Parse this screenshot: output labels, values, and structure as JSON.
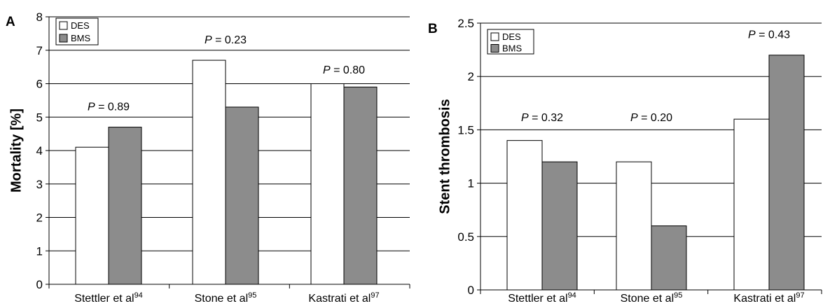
{
  "chart_data": [
    {
      "type": "bar",
      "panel_label": "A",
      "ylabel": "Mortality [%]",
      "xlabel": "",
      "ylim": [
        0,
        8
      ],
      "yticks": [
        0,
        1,
        2,
        3,
        4,
        5,
        6,
        7,
        8
      ],
      "ytick_labels": [
        "0",
        "1",
        "2",
        "3",
        "4",
        "5",
        "6",
        "7",
        "8"
      ],
      "grid": true,
      "legend_position": "top-left",
      "categories": [
        {
          "name": "Stettler et al",
          "ref": "94"
        },
        {
          "name": "Stone et al",
          "ref": "95"
        },
        {
          "name": "Kastrati et al",
          "ref": "97"
        }
      ],
      "series": [
        {
          "name": "DES",
          "color": "#ffffff",
          "values": [
            4.1,
            6.7,
            6.0
          ]
        },
        {
          "name": "BMS",
          "color": "#8c8c8c",
          "values": [
            4.7,
            5.3,
            5.9
          ]
        }
      ],
      "annotations": [
        {
          "prefix": "P",
          "text": " = 0.89",
          "category": 0,
          "y": 5.2
        },
        {
          "prefix": "P",
          "text": " = 0.23",
          "category": 1,
          "y": 7.2
        },
        {
          "prefix": "P",
          "text": " = 0.80",
          "category": 2,
          "y": 6.3
        }
      ]
    },
    {
      "type": "bar",
      "panel_label": "B",
      "ylabel": "Stent thrombosis",
      "xlabel": "",
      "ylim": [
        0,
        2.5
      ],
      "yticks": [
        0,
        0.5,
        1,
        1.5,
        2,
        2.5
      ],
      "ytick_labels": [
        "0",
        "0.5",
        "1",
        "1.5",
        "2",
        "2.5"
      ],
      "grid": true,
      "legend_position": "top-left",
      "categories": [
        {
          "name": "Stettler et al",
          "ref": "94"
        },
        {
          "name": "Stone et al",
          "ref": "95"
        },
        {
          "name": "Kastrati et al",
          "ref": "97"
        }
      ],
      "series": [
        {
          "name": "DES",
          "color": "#ffffff",
          "values": [
            1.4,
            1.2,
            1.6
          ]
        },
        {
          "name": "BMS",
          "color": "#8c8c8c",
          "values": [
            1.2,
            0.6,
            2.2
          ]
        }
      ],
      "annotations": [
        {
          "prefix": "P",
          "text": " = 0.32",
          "category": 0,
          "y": 1.58
        },
        {
          "prefix": "P",
          "text": " = 0.20",
          "category": 1,
          "y": 1.58
        },
        {
          "prefix": "P",
          "text": " = 0.43",
          "category": 2,
          "y": 2.36
        }
      ]
    }
  ]
}
